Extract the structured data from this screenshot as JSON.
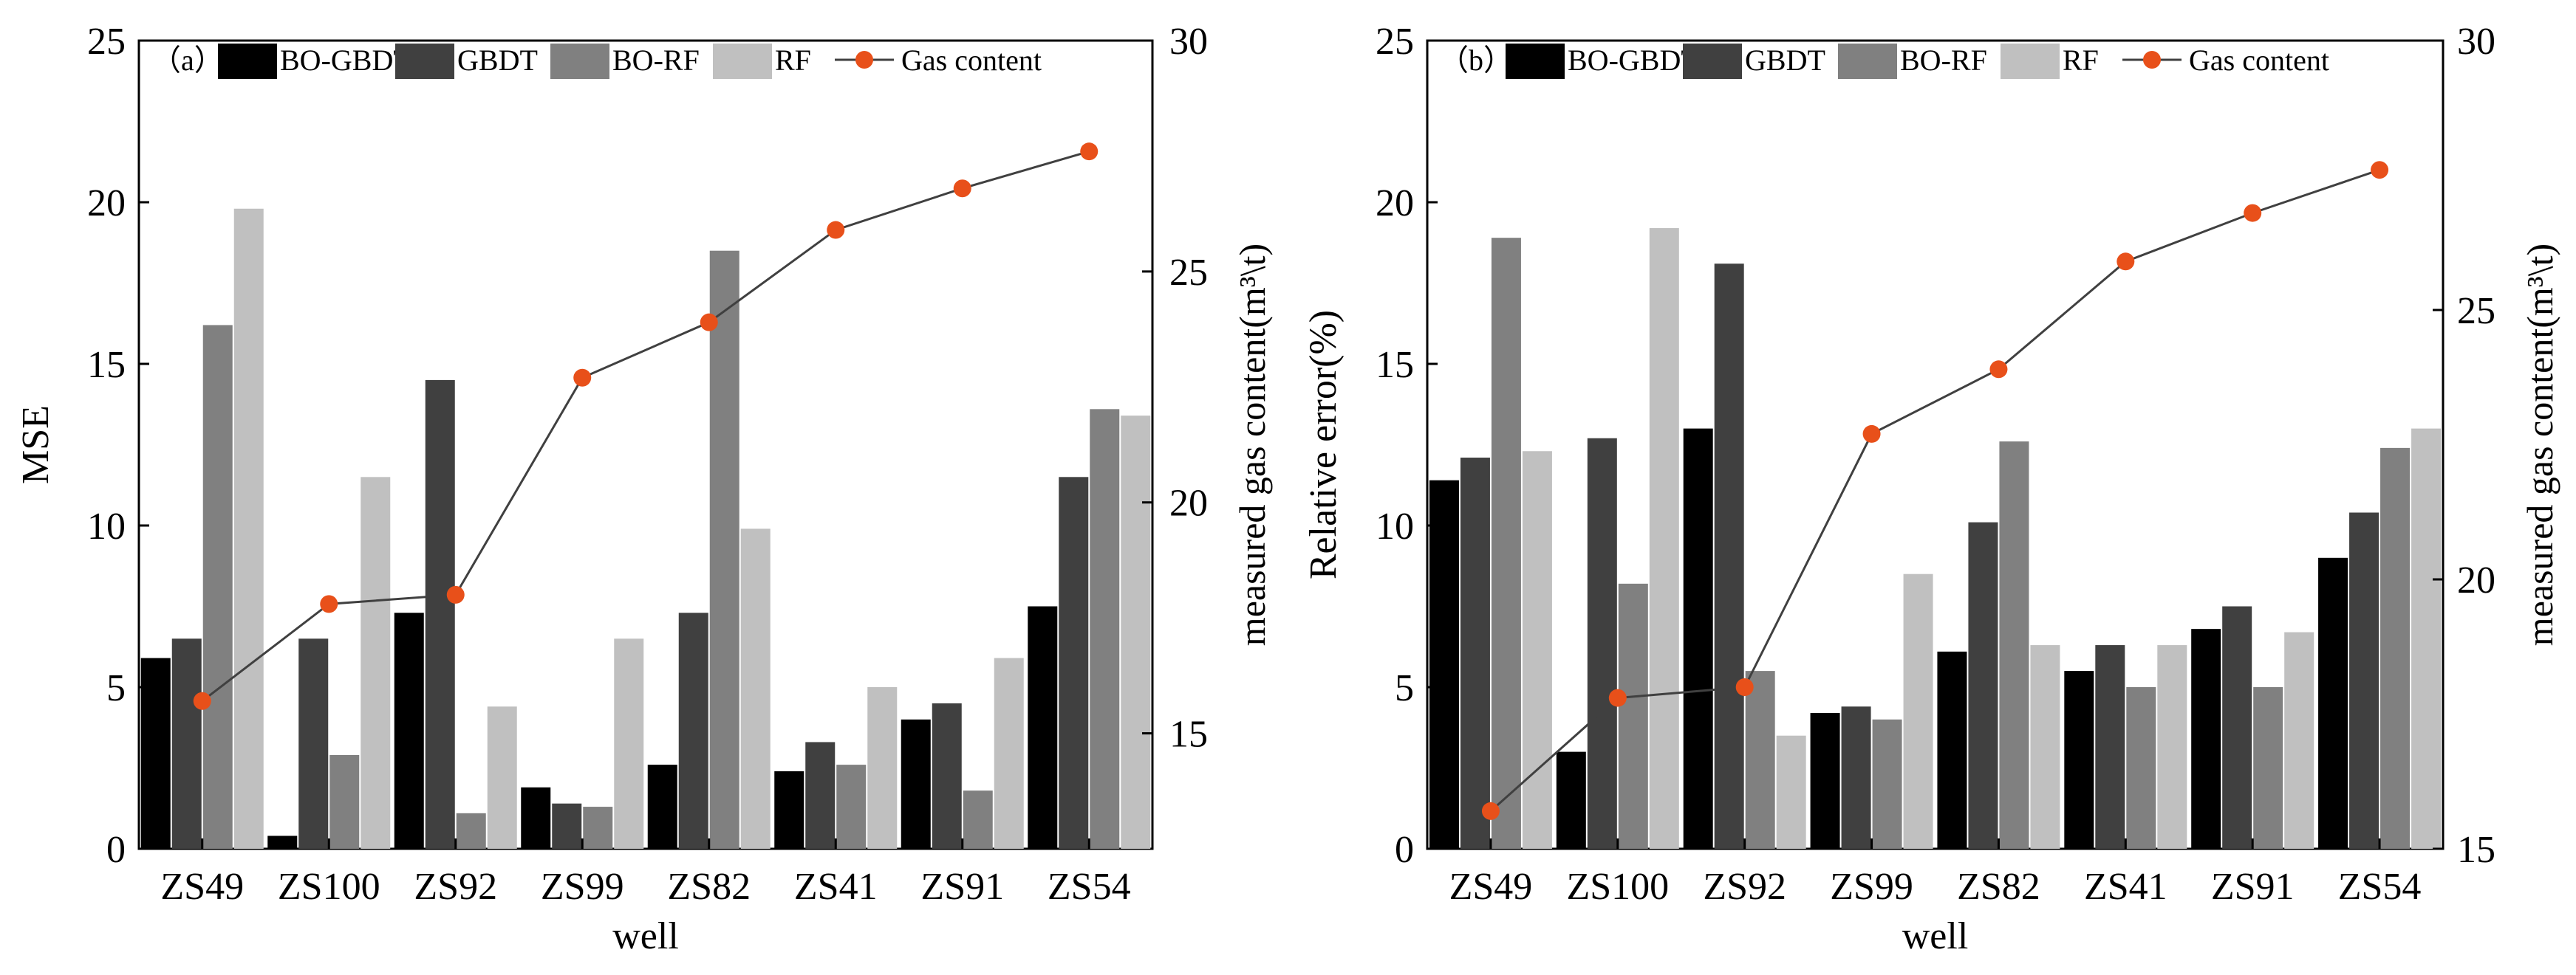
{
  "chart_data": [
    {
      "type": "bar",
      "panel_label": "（a）",
      "categories": [
        "ZS49",
        "ZS100",
        "ZS92",
        "ZS99",
        "ZS82",
        "ZS41",
        "ZS91",
        "ZS54"
      ],
      "xlabel": "well",
      "ylabel": "MSE",
      "ylim": [
        0,
        25
      ],
      "yticks": [
        "0",
        "5",
        "10",
        "15",
        "20",
        "25"
      ],
      "y2label": "measured gas content(m³\\t)",
      "y2lim": [
        12.5,
        30
      ],
      "y2ticks": [
        "15",
        "20",
        "25",
        "30"
      ],
      "series": [
        {
          "name": "BO-GBDT",
          "color": "#000000",
          "values": [
            5.9,
            0.4,
            7.3,
            1.9,
            2.6,
            2.4,
            4.0,
            7.5
          ]
        },
        {
          "name": "GBDT",
          "color": "#404040",
          "values": [
            6.5,
            6.5,
            14.5,
            1.4,
            7.3,
            3.3,
            4.5,
            11.5
          ]
        },
        {
          "name": "BO-RF",
          "color": "#808080",
          "values": [
            16.2,
            2.9,
            1.1,
            1.3,
            18.5,
            2.6,
            1.8,
            13.6
          ]
        },
        {
          "name": "RF",
          "color": "#c0c0c0",
          "values": [
            19.8,
            11.5,
            4.4,
            6.5,
            9.9,
            5.0,
            5.9,
            13.4
          ]
        }
      ],
      "line": {
        "name": "Gas content",
        "color": "#e8501a",
        "values": [
          15.7,
          17.8,
          18.0,
          22.7,
          23.9,
          25.9,
          26.8,
          27.6
        ]
      }
    },
    {
      "type": "bar",
      "panel_label": "（b）",
      "categories": [
        "ZS49",
        "ZS100",
        "ZS92",
        "ZS99",
        "ZS82",
        "ZS41",
        "ZS91",
        "ZS54"
      ],
      "xlabel": "well",
      "ylabel": "Relative error(%)",
      "ylim": [
        0,
        25
      ],
      "yticks": [
        "0",
        "5",
        "10",
        "15",
        "20",
        "25"
      ],
      "y2label": "measured gas content(m³\\t)",
      "y2lim": [
        15,
        30
      ],
      "y2ticks": [
        "15",
        "20",
        "25",
        "30"
      ],
      "series": [
        {
          "name": "BO-GBDT",
          "color": "#000000",
          "values": [
            11.4,
            3.0,
            13.0,
            4.2,
            6.1,
            5.5,
            6.8,
            9.0
          ]
        },
        {
          "name": "GBDT",
          "color": "#404040",
          "values": [
            12.1,
            12.7,
            18.1,
            4.4,
            10.1,
            6.3,
            7.5,
            10.4
          ]
        },
        {
          "name": "BO-RF",
          "color": "#808080",
          "values": [
            18.9,
            8.2,
            5.5,
            4.0,
            12.6,
            5.0,
            5.0,
            12.4
          ]
        },
        {
          "name": "RF",
          "color": "#c0c0c0",
          "values": [
            12.3,
            19.2,
            3.5,
            8.5,
            6.3,
            6.3,
            6.7,
            13.0
          ]
        }
      ],
      "line": {
        "name": "Gas content",
        "color": "#e8501a",
        "values": [
          15.7,
          17.8,
          18.0,
          22.7,
          23.9,
          25.9,
          26.8,
          27.6
        ]
      }
    }
  ]
}
